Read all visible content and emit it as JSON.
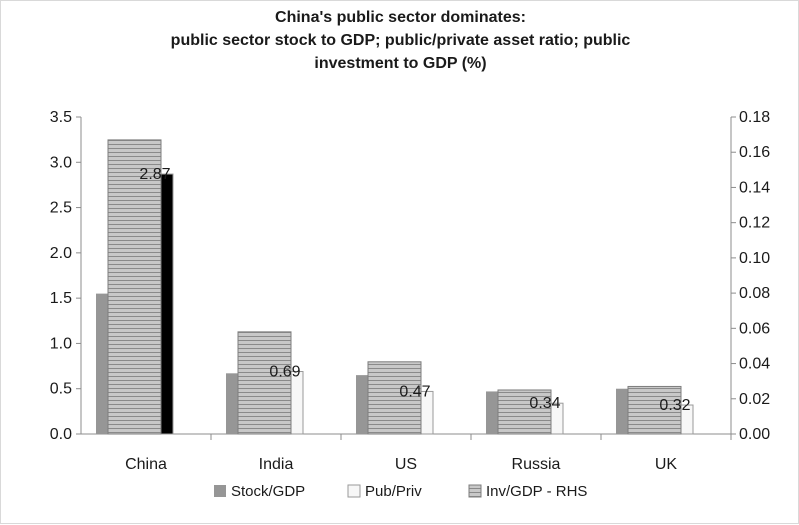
{
  "chart_data": {
    "type": "bar",
    "title_lines": [
      "China's public sector dominates:",
      "public sector stock to GDP; public/private asset ratio; public",
      "investment to GDP (%)"
    ],
    "categories": [
      "China",
      "India",
      "US",
      "Russia",
      "UK"
    ],
    "left_axis": {
      "min": 0,
      "max": 3.5,
      "ticks": [
        "0.0",
        "0.5",
        "1.0",
        "1.5",
        "2.0",
        "2.5",
        "3.0",
        "3.5"
      ]
    },
    "right_axis": {
      "min": 0,
      "max": 0.18,
      "ticks": [
        "0.00",
        "0.02",
        "0.04",
        "0.06",
        "0.08",
        "0.10",
        "0.12",
        "0.14",
        "0.16",
        "0.18"
      ]
    },
    "series": [
      {
        "name": "Stock/GDP",
        "axis": "left",
        "values": [
          1.55,
          0.67,
          0.65,
          0.47,
          0.5
        ],
        "color": "#969696"
      },
      {
        "name": "Pub/Priv",
        "axis": "left",
        "values": [
          2.87,
          0.69,
          0.47,
          0.34,
          0.32
        ],
        "color": "#f7f7f7",
        "highlight_color": "#000000",
        "data_labels": [
          "2.87",
          "0.69",
          "0.47",
          "0.34",
          "0.32"
        ]
      },
      {
        "name": "Inv/GDP - RHS",
        "axis": "right",
        "values": [
          0.167,
          0.058,
          0.041,
          0.025,
          0.027
        ],
        "color": "#bdbdbd"
      }
    ],
    "legend_position": "bottom",
    "grid": false
  }
}
